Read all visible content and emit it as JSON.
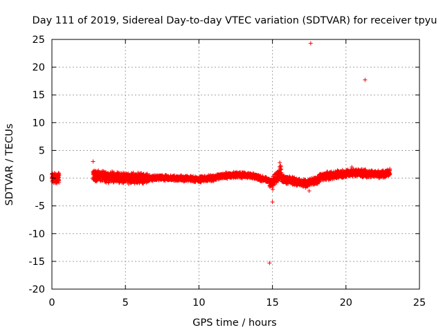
{
  "chart_data": {
    "type": "scatter",
    "title": "Day 111 of 2019, Sidereal Day-to-day VTEC variation (SDTVAR) for receiver tpyu",
    "xlabel": "GPS time / hours",
    "ylabel": "SDTVAR / TECUs",
    "xlim": [
      0,
      25
    ],
    "ylim": [
      -20,
      25
    ],
    "xticks": [
      0,
      5,
      10,
      15,
      20,
      25
    ],
    "yticks": [
      -20,
      -15,
      -10,
      -5,
      0,
      5,
      10,
      15,
      20,
      25
    ],
    "grid": true,
    "marker": "+",
    "marker_color": "#ff0000",
    "series": [
      {
        "name": "SDTVAR",
        "segments": [
          {
            "x_start": 0.0,
            "x_end": 0.5,
            "center": [
              [
                0.0,
                0.0
              ],
              [
                0.5,
                0.0
              ]
            ],
            "spread": 1.2
          },
          {
            "x_start": 2.8,
            "x_end": 6.5,
            "center": [
              [
                2.8,
                0.5
              ],
              [
                3.5,
                0.3
              ],
              [
                4.5,
                0.1
              ],
              [
                5.5,
                0.0
              ],
              [
                6.5,
                0.0
              ]
            ],
            "spread": 1.1
          },
          {
            "x_start": 6.5,
            "x_end": 11.2,
            "center": [
              [
                6.5,
                0.0
              ],
              [
                8.5,
                0.0
              ],
              [
                10.0,
                -0.2
              ],
              [
                11.2,
                0.1
              ]
            ],
            "spread": 0.6
          },
          {
            "x_start": 11.2,
            "x_end": 14.8,
            "center": [
              [
                11.2,
                0.3
              ],
              [
                12.5,
                0.6
              ],
              [
                13.5,
                0.5
              ],
              [
                14.8,
                -0.5
              ]
            ],
            "spread": 0.6
          },
          {
            "x_start": 14.8,
            "x_end": 15.6,
            "center": [
              [
                14.8,
                -0.5
              ],
              [
                15.0,
                -1.0
              ],
              [
                15.3,
                0.3
              ],
              [
                15.6,
                1.5
              ]
            ],
            "spread": 1.3
          },
          {
            "x_start": 15.6,
            "x_end": 18.2,
            "center": [
              [
                15.6,
                0.0
              ],
              [
                16.5,
                -0.6
              ],
              [
                17.3,
                -1.0
              ],
              [
                18.2,
                -0.3
              ]
            ],
            "spread": 0.8
          },
          {
            "x_start": 18.2,
            "x_end": 23.0,
            "center": [
              [
                18.2,
                0.2
              ],
              [
                19.5,
                0.7
              ],
              [
                20.5,
                1.0
              ],
              [
                21.5,
                0.8
              ],
              [
                22.3,
                0.7
              ],
              [
                23.0,
                1.0
              ]
            ],
            "spread": 0.8
          }
        ],
        "outliers": [
          {
            "x": 17.6,
            "y": 24.3
          },
          {
            "x": 21.3,
            "y": 17.7
          },
          {
            "x": 14.8,
            "y": -15.3
          },
          {
            "x": 15.0,
            "y": -4.3
          },
          {
            "x": 2.8,
            "y": 3.0
          },
          {
            "x": 17.5,
            "y": -2.3
          },
          {
            "x": 20.4,
            "y": 2.0
          },
          {
            "x": 15.5,
            "y": 2.8
          }
        ]
      }
    ]
  }
}
